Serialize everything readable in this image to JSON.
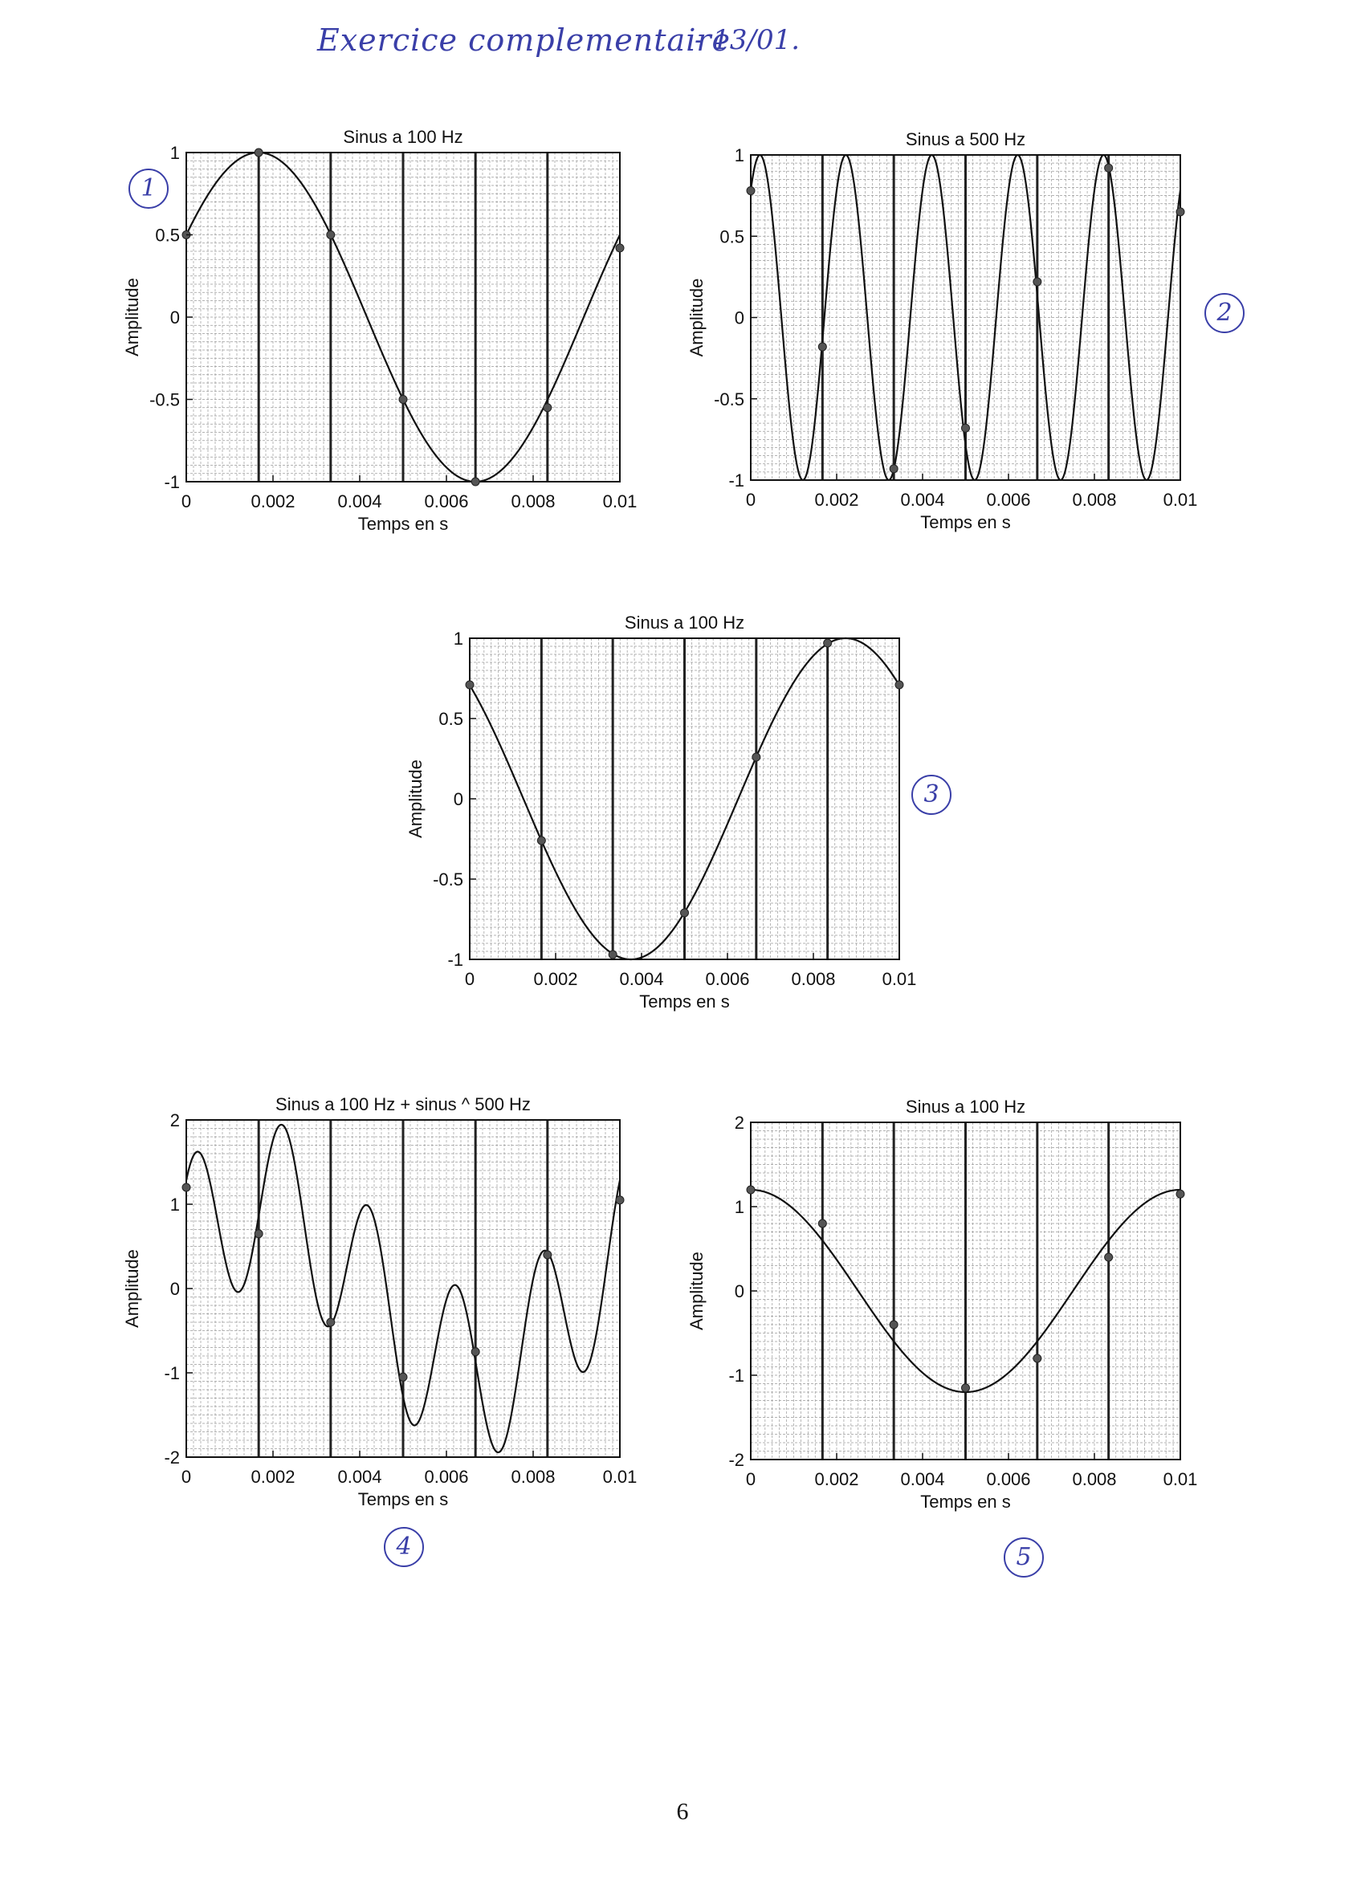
{
  "header": {
    "handwritten_title": "Exercice complementaire",
    "handwritten_date": "- 13/01."
  },
  "markers": [
    "1",
    "2",
    "3",
    "4",
    "5"
  ],
  "page_number": "6",
  "chart_data": [
    {
      "type": "line",
      "title": "Sinus a 100 Hz",
      "xlabel": "Temps en s",
      "ylabel": "Amplitude",
      "xlim": [
        0,
        0.01
      ],
      "ylim": [
        -1,
        1
      ],
      "xticks": [
        "0",
        "0.002",
        "0.004",
        "0.006",
        "0.008",
        "0.01"
      ],
      "yticks": [
        "1",
        "0.5",
        "0",
        "-0.5",
        "-1"
      ],
      "grid": true,
      "series": [
        {
          "function": "sin",
          "frequency_hz": 100,
          "amplitude": 1,
          "phase_rad": 0.5236,
          "x_range": [
            0,
            0.01
          ]
        }
      ],
      "sample_times": [
        0,
        0.00167,
        0.00333,
        0.005,
        0.00667,
        0.00833,
        0.01
      ],
      "sample_values": [
        0.5,
        1.0,
        0.5,
        -0.5,
        -1.0,
        -0.55,
        0.42
      ]
    },
    {
      "type": "line",
      "title": "Sinus a 500 Hz",
      "xlabel": "Temps en s",
      "ylabel": "Amplitude",
      "xlim": [
        0,
        0.01
      ],
      "ylim": [
        -1,
        1
      ],
      "xticks": [
        "0",
        "0.002",
        "0.004",
        "0.006",
        "0.008",
        "0.01"
      ],
      "yticks": [
        "1",
        "0.5",
        "0",
        "-0.5",
        "-1"
      ],
      "grid": true,
      "series": [
        {
          "function": "sin",
          "frequency_hz": 500,
          "amplitude": 1,
          "phase_rad": 0.9,
          "x_range": [
            0,
            0.01
          ]
        }
      ],
      "sample_times": [
        0,
        0.00167,
        0.00333,
        0.005,
        0.00667,
        0.00833,
        0.01
      ],
      "sample_values": [
        0.78,
        -0.18,
        -0.93,
        -0.68,
        0.22,
        0.92,
        0.65
      ]
    },
    {
      "type": "line",
      "title": "Sinus a 100 Hz",
      "xlabel": "Temps en s",
      "ylabel": "Amplitude",
      "xlim": [
        0,
        0.01
      ],
      "ylim": [
        -1,
        1
      ],
      "xticks": [
        "0",
        "0.002",
        "0.004",
        "0.006",
        "0.008",
        "0.01"
      ],
      "yticks": [
        "1",
        "0.5",
        "0",
        "-0.5",
        "-1"
      ],
      "grid": true,
      "series": [
        {
          "function": "sin",
          "frequency_hz": 100,
          "amplitude": 1,
          "phase_rad": 2.3562,
          "x_range": [
            0,
            0.01
          ]
        }
      ],
      "sample_times": [
        0,
        0.00167,
        0.00333,
        0.005,
        0.00667,
        0.00833,
        0.01
      ],
      "sample_values": [
        0.71,
        -0.26,
        -0.97,
        -0.71,
        0.26,
        0.97,
        0.71
      ]
    },
    {
      "type": "line",
      "title": "Sinus a 100 Hz + sinus ^  500 Hz",
      "xlabel": "Temps en s",
      "ylabel": "Amplitude",
      "xlim": [
        0,
        0.01
      ],
      "ylim": [
        -2,
        2
      ],
      "xticks": [
        "0",
        "0.002",
        "0.004",
        "0.006",
        "0.008",
        "0.01"
      ],
      "yticks": [
        "2",
        "1",
        "0",
        "-1",
        "-2"
      ],
      "grid": true,
      "series": [
        {
          "function": "sin+sin",
          "components": [
            {
              "frequency_hz": 100,
              "amplitude": 1,
              "phase_rad": 0.5236
            },
            {
              "frequency_hz": 500,
              "amplitude": 1,
              "phase_rad": 0.9
            }
          ],
          "x_range": [
            0,
            0.01
          ]
        }
      ],
      "sample_times": [
        0,
        0.00167,
        0.00333,
        0.005,
        0.00667,
        0.00833,
        0.01
      ],
      "sample_values": [
        1.2,
        0.65,
        -0.4,
        -1.05,
        -0.75,
        0.4,
        1.05
      ]
    },
    {
      "type": "line",
      "title": "Sinus a 100 Hz",
      "xlabel": "Temps en s",
      "ylabel": "Amplitude",
      "xlim": [
        0,
        0.01
      ],
      "ylim": [
        -2,
        2
      ],
      "xticks": [
        "0",
        "0.002",
        "0.004",
        "0.006",
        "0.008",
        "0.01"
      ],
      "yticks": [
        "2",
        "1",
        "0",
        "-1",
        "-2"
      ],
      "grid": true,
      "series": [
        {
          "function": "sin",
          "frequency_hz": 100,
          "amplitude": 1.2,
          "phase_rad": 1.5708,
          "x_range": [
            0,
            0.01
          ]
        }
      ],
      "sample_times": [
        0,
        0.00167,
        0.00333,
        0.005,
        0.00667,
        0.00833,
        0.01
      ],
      "sample_values": [
        1.2,
        0.8,
        -0.4,
        -1.15,
        -0.8,
        0.4,
        1.15
      ]
    }
  ]
}
